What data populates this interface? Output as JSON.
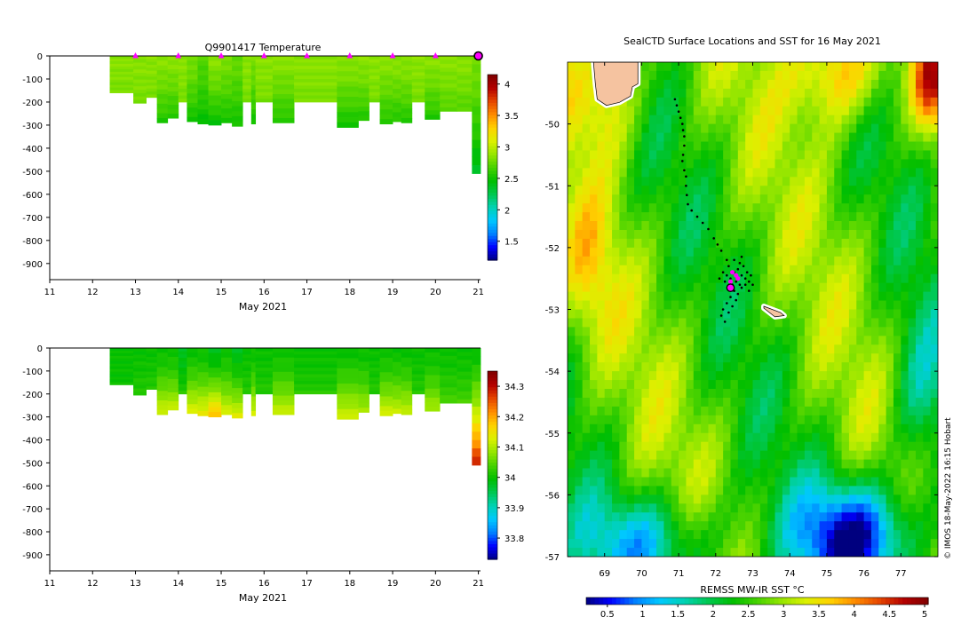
{
  "colors": {
    "temp_ramp": [
      "#00007f",
      "#0000ff",
      "#007fff",
      "#00c8ff",
      "#00d2b4",
      "#00c850",
      "#00be00",
      "#46d200",
      "#96e600",
      "#dcf000",
      "#ffd200",
      "#ff8c00",
      "#e64600",
      "#b40000",
      "#7f0000"
    ],
    "land_fill": "#f5c3a0",
    "marker": "#ff00ff"
  },
  "chart_data": [
    {
      "id": "temperature_section",
      "type": "heatmap",
      "title": "Q9901417  Temperature",
      "xlabel": "May 2021",
      "ylabel": "",
      "xlim": [
        11,
        21.05
      ],
      "ylim": [
        -970,
        0
      ],
      "xticks": [
        11,
        12,
        13,
        14,
        15,
        16,
        17,
        18,
        19,
        20,
        21
      ],
      "yticks": [
        0,
        -100,
        -200,
        -300,
        -400,
        -500,
        -600,
        -700,
        -800,
        -900
      ],
      "surface_markers": [
        13,
        14,
        15,
        16,
        17,
        18,
        19,
        20
      ],
      "latest_marker": 21,
      "profiles": [
        {
          "x": 12.4,
          "x2": 12.95,
          "depth": -160,
          "t_surf": 2.85,
          "t_deep": 2.8
        },
        {
          "x": 12.95,
          "x2": 13.25,
          "depth": -205,
          "t_surf": 2.85,
          "t_deep": 2.8
        },
        {
          "x": 13.25,
          "x2": 13.5,
          "depth": -180,
          "t_surf": 2.85,
          "t_deep": 2.8
        },
        {
          "x": 13.5,
          "x2": 13.75,
          "depth": -290,
          "t_surf": 2.85,
          "t_deep": 2.55
        },
        {
          "x": 13.75,
          "x2": 14.0,
          "depth": -270,
          "t_surf": 2.85,
          "t_deep": 2.55
        },
        {
          "x": 14.0,
          "x2": 14.2,
          "depth": -200,
          "t_surf": 2.85,
          "t_deep": 2.8
        },
        {
          "x": 14.2,
          "x2": 14.45,
          "depth": -285,
          "t_surf": 2.8,
          "t_deep": 2.5
        },
        {
          "x": 14.45,
          "x2": 14.7,
          "depth": -295,
          "t_surf": 2.7,
          "t_deep": 2.45
        },
        {
          "x": 14.7,
          "x2": 15.0,
          "depth": -300,
          "t_surf": 2.85,
          "t_deep": 2.45
        },
        {
          "x": 15.0,
          "x2": 15.25,
          "depth": -290,
          "t_surf": 2.8,
          "t_deep": 2.5
        },
        {
          "x": 15.25,
          "x2": 15.5,
          "depth": -305,
          "t_surf": 2.75,
          "t_deep": 2.5
        },
        {
          "x": 15.5,
          "x2": 15.7,
          "depth": -200,
          "t_surf": 2.85,
          "t_deep": 2.8
        },
        {
          "x": 15.7,
          "x2": 15.8,
          "depth": -295,
          "t_surf": 2.8,
          "t_deep": 2.5
        },
        {
          "x": 15.8,
          "x2": 16.2,
          "depth": -200,
          "t_surf": 2.85,
          "t_deep": 2.8
        },
        {
          "x": 16.2,
          "x2": 16.7,
          "depth": -290,
          "t_surf": 2.85,
          "t_deep": 2.55
        },
        {
          "x": 16.7,
          "x2": 17.7,
          "depth": -200,
          "t_surf": 2.85,
          "t_deep": 2.8
        },
        {
          "x": 17.7,
          "x2": 18.2,
          "depth": -310,
          "t_surf": 2.85,
          "t_deep": 2.5
        },
        {
          "x": 18.2,
          "x2": 18.45,
          "depth": -280,
          "t_surf": 2.85,
          "t_deep": 2.55
        },
        {
          "x": 18.45,
          "x2": 18.7,
          "depth": -200,
          "t_surf": 2.85,
          "t_deep": 2.8
        },
        {
          "x": 18.7,
          "x2": 19.0,
          "depth": -295,
          "t_surf": 2.85,
          "t_deep": 2.55
        },
        {
          "x": 19.0,
          "x2": 19.2,
          "depth": -285,
          "t_surf": 2.85,
          "t_deep": 2.55
        },
        {
          "x": 19.2,
          "x2": 19.45,
          "depth": -290,
          "t_surf": 2.85,
          "t_deep": 2.55
        },
        {
          "x": 19.45,
          "x2": 19.75,
          "depth": -200,
          "t_surf": 2.85,
          "t_deep": 2.8
        },
        {
          "x": 19.75,
          "x2": 20.1,
          "depth": -275,
          "t_surf": 2.85,
          "t_deep": 2.55
        },
        {
          "x": 20.1,
          "x2": 20.5,
          "depth": -240,
          "t_surf": 2.85,
          "t_deep": 2.7
        },
        {
          "x": 20.5,
          "x2": 20.85,
          "depth": -240,
          "t_surf": 2.85,
          "t_deep": 2.7
        },
        {
          "x": 20.85,
          "x2": 21.05,
          "depth": -510,
          "t_surf": 2.8,
          "t_deep": 2.35
        }
      ],
      "colorbar": {
        "min": 1.2,
        "max": 4.15,
        "ticks": [
          1.5,
          2,
          2.5,
          3,
          3.5,
          4
        ],
        "labels": [
          "1.5",
          "2",
          "2.5",
          "3",
          "3.5",
          "4"
        ]
      }
    },
    {
      "id": "salinity_section",
      "type": "heatmap",
      "title": "",
      "xlabel": "May 2021",
      "ylabel": "",
      "xlim": [
        11,
        21.05
      ],
      "ylim": [
        -970,
        0
      ],
      "xticks": [
        11,
        12,
        13,
        14,
        15,
        16,
        17,
        18,
        19,
        20,
        21
      ],
      "yticks": [
        0,
        -100,
        -200,
        -300,
        -400,
        -500,
        -600,
        -700,
        -800,
        -900
      ],
      "profiles": [
        {
          "x": 12.4,
          "x2": 12.95,
          "depth": -160,
          "s_surf": 34.0,
          "s_deep": 34.0
        },
        {
          "x": 12.95,
          "x2": 13.25,
          "depth": -205,
          "s_surf": 34.0,
          "s_deep": 34.02
        },
        {
          "x": 13.25,
          "x2": 13.5,
          "depth": -180,
          "s_surf": 34.0,
          "s_deep": 34.02
        },
        {
          "x": 13.5,
          "x2": 13.75,
          "depth": -290,
          "s_surf": 34.0,
          "s_deep": 34.13
        },
        {
          "x": 13.75,
          "x2": 14.0,
          "depth": -270,
          "s_surf": 34.0,
          "s_deep": 34.12
        },
        {
          "x": 14.0,
          "x2": 14.2,
          "depth": -200,
          "s_surf": 33.98,
          "s_deep": 34.02
        },
        {
          "x": 14.2,
          "x2": 14.45,
          "depth": -285,
          "s_surf": 34.0,
          "s_deep": 34.14
        },
        {
          "x": 14.45,
          "x2": 14.7,
          "depth": -295,
          "s_surf": 34.0,
          "s_deep": 34.15
        },
        {
          "x": 14.7,
          "x2": 15.0,
          "depth": -300,
          "s_surf": 33.98,
          "s_deep": 34.2
        },
        {
          "x": 15.0,
          "x2": 15.25,
          "depth": -290,
          "s_surf": 34.0,
          "s_deep": 34.13
        },
        {
          "x": 15.25,
          "x2": 15.5,
          "depth": -305,
          "s_surf": 33.98,
          "s_deep": 34.14
        },
        {
          "x": 15.5,
          "x2": 15.7,
          "depth": -200,
          "s_surf": 34.0,
          "s_deep": 34.02
        },
        {
          "x": 15.7,
          "x2": 15.8,
          "depth": -295,
          "s_surf": 34.0,
          "s_deep": 34.13
        },
        {
          "x": 15.8,
          "x2": 16.2,
          "depth": -200,
          "s_surf": 34.0,
          "s_deep": 34.02
        },
        {
          "x": 16.2,
          "x2": 16.7,
          "depth": -290,
          "s_surf": 34.0,
          "s_deep": 34.12
        },
        {
          "x": 16.7,
          "x2": 17.7,
          "depth": -200,
          "s_surf": 34.0,
          "s_deep": 34.02
        },
        {
          "x": 17.7,
          "x2": 18.2,
          "depth": -310,
          "s_surf": 34.0,
          "s_deep": 34.13
        },
        {
          "x": 18.2,
          "x2": 18.45,
          "depth": -280,
          "s_surf": 34.0,
          "s_deep": 34.1
        },
        {
          "x": 18.45,
          "x2": 18.7,
          "depth": -200,
          "s_surf": 34.0,
          "s_deep": 34.02
        },
        {
          "x": 18.7,
          "x2": 19.0,
          "depth": -295,
          "s_surf": 34.0,
          "s_deep": 34.13
        },
        {
          "x": 19.0,
          "x2": 19.2,
          "depth": -285,
          "s_surf": 34.0,
          "s_deep": 34.12
        },
        {
          "x": 19.2,
          "x2": 19.45,
          "depth": -290,
          "s_surf": 34.0,
          "s_deep": 34.12
        },
        {
          "x": 19.45,
          "x2": 19.75,
          "depth": -200,
          "s_surf": 34.0,
          "s_deep": 34.02
        },
        {
          "x": 19.75,
          "x2": 20.1,
          "depth": -275,
          "s_surf": 34.0,
          "s_deep": 34.1
        },
        {
          "x": 20.1,
          "x2": 20.5,
          "depth": -240,
          "s_surf": 34.0,
          "s_deep": 34.04
        },
        {
          "x": 20.5,
          "x2": 20.85,
          "depth": -240,
          "s_surf": 34.0,
          "s_deep": 34.04
        },
        {
          "x": 20.85,
          "x2": 21.05,
          "depth": -510,
          "s_surf": 34.0,
          "s_deep": 34.3
        }
      ],
      "colorbar": {
        "min": 33.73,
        "max": 34.35,
        "ticks": [
          33.8,
          33.9,
          34,
          34.1,
          34.2,
          34.3
        ],
        "labels": [
          "33.8",
          "33.9",
          "34",
          "34.1",
          "34.2",
          "34.3"
        ]
      }
    },
    {
      "id": "sst_map",
      "type": "heatmap",
      "title": "SealCTD Surface Locations and SST for 16 May 2021",
      "xlabel": "",
      "ylabel": "",
      "xlim": [
        68.0,
        78.0
      ],
      "ylim": [
        -57.0,
        -49.0
      ],
      "xticks": [
        69,
        70,
        71,
        72,
        73,
        74,
        75,
        76,
        77
      ],
      "yticks": [
        -50,
        -51,
        -52,
        -53,
        -54,
        -55,
        -56,
        -57
      ],
      "colorbar": {
        "label": "REMSS MW-IR SST °C",
        "min": 0.2,
        "max": 5.05,
        "ticks": [
          0.5,
          1,
          1.5,
          2,
          2.5,
          3,
          3.5,
          4,
          4.5,
          5
        ],
        "labels": [
          "0.5",
          "1",
          "1.5",
          "2",
          "2.5",
          "3",
          "3.5",
          "4",
          "4.5",
          "5"
        ]
      },
      "track_points": [
        [
          70.9,
          -49.6
        ],
        [
          70.95,
          -49.7
        ],
        [
          71.0,
          -49.8
        ],
        [
          71.05,
          -49.9
        ],
        [
          71.1,
          -50.0
        ],
        [
          71.12,
          -50.1
        ],
        [
          71.15,
          -50.2
        ],
        [
          71.15,
          -50.35
        ],
        [
          71.12,
          -50.5
        ],
        [
          71.1,
          -50.6
        ],
        [
          71.15,
          -50.75
        ],
        [
          71.2,
          -50.85
        ],
        [
          71.2,
          -51.0
        ],
        [
          71.22,
          -51.15
        ],
        [
          71.25,
          -51.3
        ],
        [
          71.35,
          -51.4
        ],
        [
          71.5,
          -51.5
        ],
        [
          71.65,
          -51.6
        ],
        [
          71.8,
          -51.7
        ],
        [
          71.95,
          -51.85
        ],
        [
          72.05,
          -51.95
        ],
        [
          72.15,
          -52.05
        ],
        [
          72.3,
          -52.2
        ],
        [
          72.35,
          -52.3
        ],
        [
          72.2,
          -52.4
        ],
        [
          72.3,
          -52.45
        ],
        [
          72.4,
          -52.5
        ],
        [
          72.5,
          -52.4
        ],
        [
          72.55,
          -52.55
        ],
        [
          72.45,
          -52.6
        ],
        [
          72.6,
          -52.35
        ],
        [
          72.7,
          -52.45
        ],
        [
          72.65,
          -52.6
        ],
        [
          72.8,
          -52.5
        ],
        [
          72.75,
          -52.3
        ],
        [
          72.85,
          -52.4
        ],
        [
          72.9,
          -52.55
        ],
        [
          72.95,
          -52.45
        ],
        [
          72.35,
          -52.65
        ],
        [
          72.5,
          -52.7
        ],
        [
          72.6,
          -52.75
        ],
        [
          72.4,
          -52.8
        ],
        [
          72.3,
          -52.9
        ],
        [
          72.2,
          -53.0
        ],
        [
          72.15,
          -53.1
        ],
        [
          72.25,
          -53.2
        ],
        [
          72.35,
          -53.05
        ],
        [
          72.45,
          -52.95
        ],
        [
          72.55,
          -52.85
        ],
        [
          72.7,
          -52.65
        ],
        [
          72.8,
          -52.6
        ],
        [
          72.9,
          -52.7
        ],
        [
          73.0,
          -52.6
        ],
        [
          72.1,
          -52.5
        ],
        [
          72.25,
          -52.55
        ],
        [
          72.65,
          -52.25
        ],
        [
          72.5,
          -52.2
        ],
        [
          72.7,
          -52.15
        ]
      ],
      "sighting_points": [
        [
          72.4,
          -52.55
        ],
        [
          72.55,
          -52.45
        ],
        [
          72.6,
          -52.5
        ],
        [
          72.45,
          -52.4
        ]
      ],
      "current_position": [
        72.4,
        -52.65
      ],
      "land": [
        {
          "name": "Heard Island",
          "points": [
            [
              73.3,
              -52.95
            ],
            [
              73.75,
              -53.05
            ],
            [
              73.85,
              -53.1
            ],
            [
              73.6,
              -53.12
            ],
            [
              73.3,
              -52.98
            ]
          ]
        },
        {
          "name": "Kerguelen Islands",
          "points": [
            [
              68.7,
              -49.0
            ],
            [
              69.9,
              -49.0
            ],
            [
              69.9,
              -49.35
            ],
            [
              69.75,
              -49.4
            ],
            [
              69.7,
              -49.55
            ],
            [
              69.4,
              -49.65
            ],
            [
              69.05,
              -49.7
            ],
            [
              68.8,
              -49.6
            ],
            [
              68.75,
              -49.35
            ]
          ]
        }
      ],
      "land_labels": []
    }
  ],
  "credit": {
    "text": "© IMOS 18-May-2022 16:15 Hobart"
  }
}
